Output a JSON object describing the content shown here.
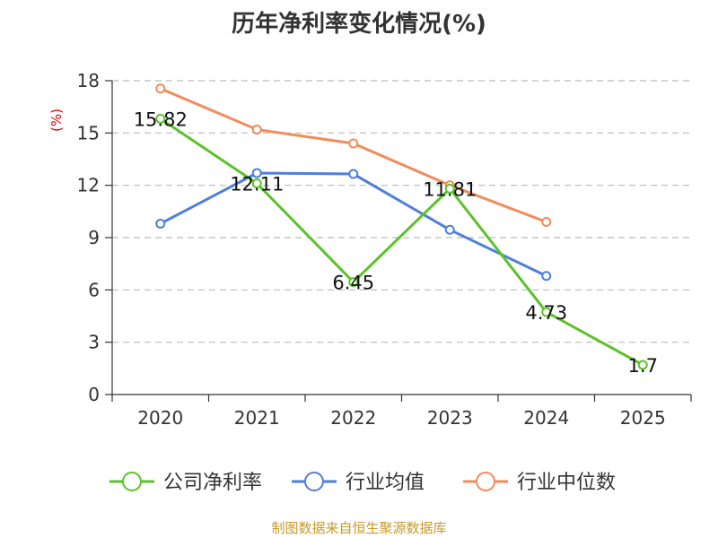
{
  "title": "历年净利率变化情况(%)",
  "ylabel": "(%)",
  "footer": "制图数据来自恒生聚源数据库",
  "chart_data": {
    "type": "line",
    "categories": [
      "2020",
      "2021",
      "2022",
      "2023",
      "2024",
      "2025"
    ],
    "ylim": [
      0,
      18
    ],
    "yticks": [
      0,
      3,
      6,
      9,
      12,
      15,
      18
    ],
    "grid": true,
    "legend_position": "bottom",
    "series": [
      {
        "name": "公司净利率",
        "color": "#5cc22a",
        "values": [
          15.82,
          12.11,
          6.45,
          11.81,
          4.73,
          1.7
        ],
        "labels": [
          "15.82",
          "12.11",
          "6.45",
          "11.81",
          "4.73",
          "1.7"
        ]
      },
      {
        "name": "行业均值",
        "color": "#4f7fdc",
        "values": [
          9.8,
          12.7,
          12.65,
          9.45,
          6.8,
          null
        ]
      },
      {
        "name": "行业中位数",
        "color": "#f28c5a",
        "values": [
          17.55,
          15.2,
          14.4,
          12.0,
          9.9,
          null
        ]
      }
    ]
  }
}
